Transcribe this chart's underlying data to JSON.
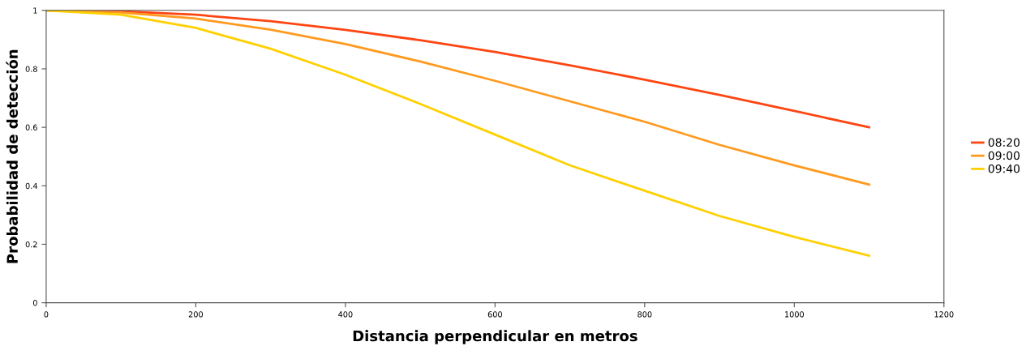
{
  "chart_data": {
    "type": "line",
    "xlabel": "Distancia perpendicular en metros",
    "ylabel": "Probabilidad de detección",
    "x": [
      0,
      100,
      200,
      300,
      400,
      500,
      600,
      700,
      800,
      900,
      1000,
      1100
    ],
    "series": [
      {
        "name": "08:20",
        "color": "#ff4512",
        "values": [
          1,
          0.997,
          0.985,
          0.963,
          0.933,
          0.898,
          0.858,
          0.812,
          0.763,
          0.711,
          0.656,
          0.6
        ]
      },
      {
        "name": "09:00",
        "color": "#ff9a1f",
        "values": [
          1,
          0.993,
          0.972,
          0.934,
          0.885,
          0.825,
          0.759,
          0.689,
          0.619,
          0.54,
          0.47,
          0.404
        ]
      },
      {
        "name": "09:40",
        "color": "#ffd000",
        "values": [
          1,
          0.985,
          0.94,
          0.869,
          0.78,
          0.68,
          0.575,
          0.47,
          0.383,
          0.297,
          0.225,
          0.161
        ]
      }
    ],
    "xlim": [
      0,
      1200
    ],
    "xticks": [
      0,
      200,
      400,
      600,
      800,
      1000,
      1200
    ],
    "ylim": [
      0,
      1
    ],
    "yticks": [
      0,
      0.2,
      0.4,
      0.6,
      0.8,
      1
    ],
    "grid": false,
    "legend": "right",
    "marker": "none",
    "line_style": "solid"
  }
}
